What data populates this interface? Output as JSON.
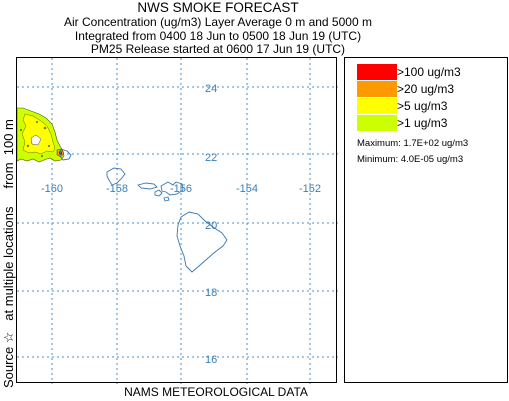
{
  "header": {
    "title": "NWS SMOKE FORECAST",
    "line2": "Air Concentration (ug/m3) Layer Average    0 m and  5000 m",
    "line3": "Integrated from 0400 18 Jun to 0500 18 Jun 19 (UTC)",
    "line4": "PM25 Release started at 0600 17 Jun 19 (UTC)"
  },
  "side_label": "Source ☆   at multiple locations     from  100 m",
  "bottom_label": "NAMS METEOROLOGICAL DATA",
  "map": {
    "lat_labels": [
      "24",
      "22",
      "20",
      "18",
      "16"
    ],
    "lon_labels": [
      "-160",
      "-158",
      "-156",
      "-154",
      "-152"
    ],
    "grid_color": "#4a90c8",
    "coast_color": "#3a78b0"
  },
  "legend": {
    "items": [
      {
        "label": ">100 ug/m3",
        "color": "#ff0000"
      },
      {
        "label": ">20 ug/m3",
        "color": "#ff9900"
      },
      {
        "label": ">5 ug/m3",
        "color": "#ffff00"
      },
      {
        "label": ">1 ug/m3",
        "color": "#ccff00"
      }
    ],
    "maximum": "Maximum: 1.7E+02 ug/m3",
    "minimum": "Minimum: 4.0E-05 ug/m3"
  }
}
